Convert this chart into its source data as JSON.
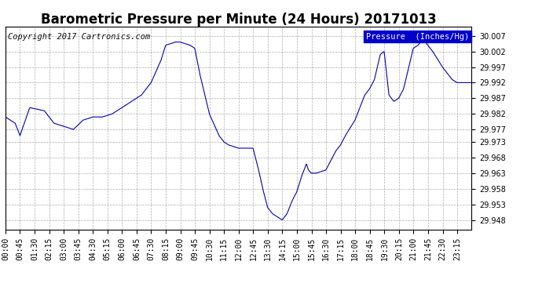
{
  "title": "Barometric Pressure per Minute (24 Hours) 20171013",
  "copyright_text": "Copyright 2017 Cartronics.com",
  "legend_label": "Pressure  (Inches/Hg)",
  "line_color": "#0000bb",
  "legend_bg": "#0000cc",
  "legend_fg": "#ffffff",
  "bg_color": "#ffffff",
  "grid_color": "#999999",
  "ylim": [
    29.945,
    30.01
  ],
  "yticks": [
    29.948,
    29.953,
    29.958,
    29.963,
    29.968,
    29.973,
    29.977,
    29.982,
    29.987,
    29.992,
    29.997,
    30.002,
    30.007
  ],
  "title_fontsize": 12,
  "copyright_fontsize": 7.5,
  "axis_fontsize": 7,
  "xtick_labels": [
    "00:00",
    "00:45",
    "01:30",
    "02:15",
    "03:00",
    "03:45",
    "04:30",
    "05:15",
    "06:00",
    "06:45",
    "07:30",
    "08:15",
    "09:00",
    "09:45",
    "10:30",
    "11:15",
    "12:00",
    "12:45",
    "13:30",
    "14:15",
    "15:00",
    "15:45",
    "16:30",
    "17:15",
    "18:00",
    "18:45",
    "19:30",
    "20:15",
    "21:00",
    "21:45",
    "22:30",
    "23:15"
  ],
  "key_times": [
    0,
    0.5,
    0.75,
    1.25,
    2.0,
    2.5,
    3.0,
    3.5,
    4.0,
    4.5,
    5.0,
    5.5,
    6.0,
    6.5,
    7.0,
    7.5,
    8.0,
    8.25,
    8.75,
    9.0,
    9.5,
    9.75,
    10.0,
    10.5,
    11.0,
    11.25,
    11.5,
    12.0,
    12.25,
    12.75,
    13.0,
    13.25,
    13.5,
    13.75,
    14.0,
    14.25,
    14.5,
    14.75,
    15.0,
    15.25,
    15.5,
    15.6,
    15.75,
    16.0,
    16.5,
    17.0,
    17.25,
    17.5,
    18.0,
    18.25,
    18.5,
    18.75,
    19.0,
    19.3,
    19.5,
    19.75,
    20.0,
    20.25,
    20.5,
    21.0,
    21.25,
    21.5,
    21.75,
    22.0,
    22.5,
    23.0,
    23.25,
    24.0
  ],
  "key_vals": [
    29.981,
    29.979,
    29.975,
    29.984,
    29.983,
    29.979,
    29.978,
    29.977,
    29.98,
    29.981,
    29.981,
    29.982,
    29.984,
    29.986,
    29.988,
    29.992,
    29.999,
    30.004,
    30.005,
    30.005,
    30.004,
    30.003,
    29.995,
    29.982,
    29.975,
    29.973,
    29.972,
    29.971,
    29.971,
    29.971,
    29.965,
    29.958,
    29.952,
    29.95,
    29.949,
    29.948,
    29.95,
    29.954,
    29.957,
    29.962,
    29.966,
    29.964,
    29.963,
    29.963,
    29.964,
    29.97,
    29.972,
    29.975,
    29.98,
    29.984,
    29.988,
    29.99,
    29.993,
    30.001,
    30.002,
    29.988,
    29.986,
    29.987,
    29.99,
    30.003,
    30.004,
    30.006,
    30.004,
    30.002,
    29.997,
    29.993,
    29.992,
    29.992
  ]
}
